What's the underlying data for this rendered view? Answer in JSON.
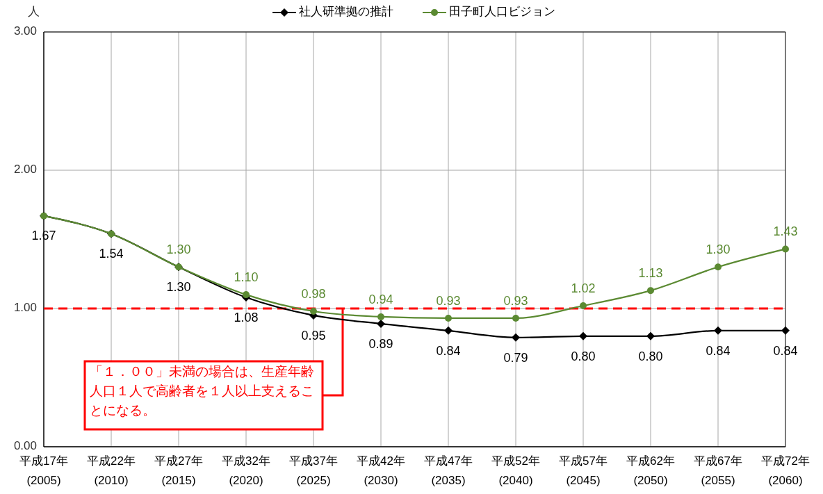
{
  "chart_data": {
    "type": "line",
    "ylabel": "人",
    "categories": [
      "平成17年\n(2005)",
      "平成22年\n(2010)",
      "平成27年\n(2015)",
      "平成32年\n(2020)",
      "平成37年\n(2025)",
      "平成42年\n(2030)",
      "平成47年\n(2035)",
      "平成52年\n(2040)",
      "平成57年\n(2045)",
      "平成62年\n(2050)",
      "平成67年\n(2055)",
      "平成72年\n(2060)"
    ],
    "ylim": [
      0,
      3
    ],
    "yticks": [
      {
        "value": 0,
        "label": "0.00"
      },
      {
        "value": 1,
        "label": "1.00"
      },
      {
        "value": 2,
        "label": "2.00"
      },
      {
        "value": 3,
        "label": "3.00"
      }
    ],
    "grid": true,
    "legend": "top",
    "line_style": "solid",
    "series": [
      {
        "name": "社人研準拠の推計",
        "color": "#000000",
        "marker": "diamond",
        "values": [
          1.67,
          1.54,
          1.3,
          1.08,
          0.95,
          0.89,
          0.84,
          0.79,
          0.8,
          0.8,
          0.84,
          0.84
        ],
        "value_labels": [
          "1.67",
          "1.54",
          "1.30",
          "1.08",
          "0.95",
          "0.89",
          "0.84",
          "0.79",
          "0.80",
          "0.80",
          "0.84",
          "0.84"
        ]
      },
      {
        "name": "田子町人口ビジョン",
        "color": "#5b8a32",
        "marker": "circle",
        "values": [
          1.67,
          1.54,
          1.3,
          1.1,
          0.98,
          0.94,
          0.93,
          0.93,
          1.02,
          1.13,
          1.3,
          1.43
        ],
        "value_labels": [
          null,
          null,
          "1.30",
          "1.10",
          "0.98",
          "0.94",
          "0.93",
          "0.93",
          "1.02",
          "1.13",
          "1.30",
          "1.43"
        ]
      }
    ],
    "ref_lines": [
      {
        "axis": "y",
        "value": 1,
        "label": "「１．００」未満の場合は、生産年齢人口１人で高齢者を１人以上支えることになる。",
        "color": "#ff0000",
        "line_style": "dashed"
      }
    ]
  }
}
